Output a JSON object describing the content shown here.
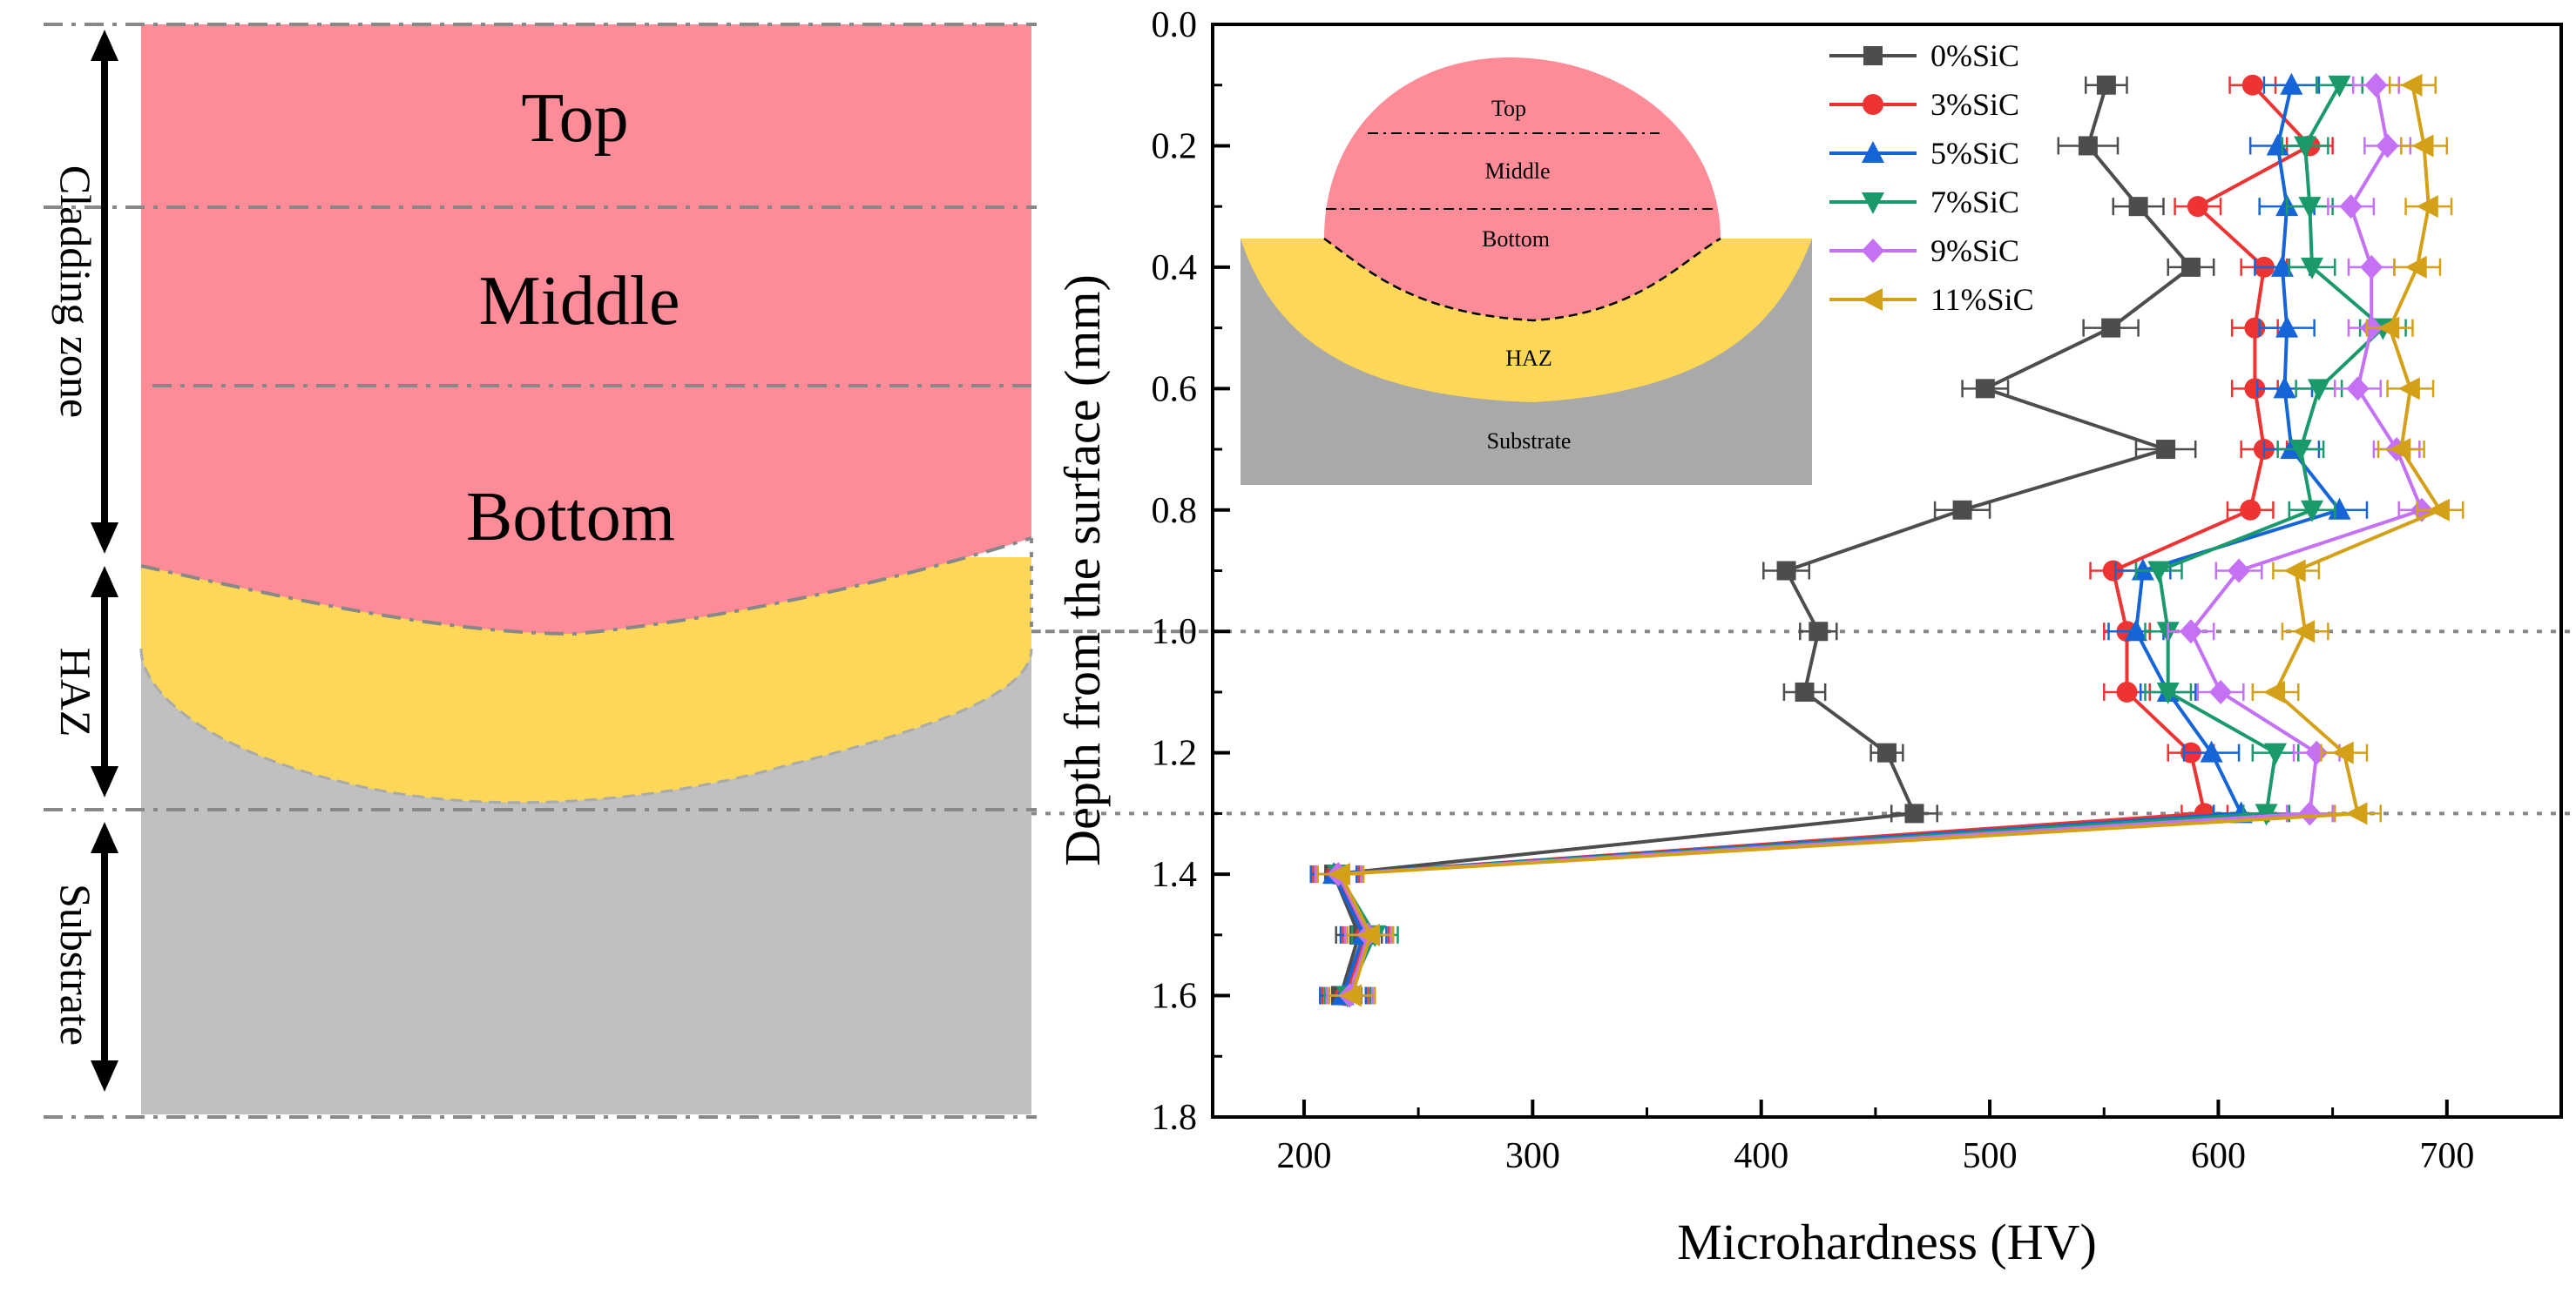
{
  "schematic": {
    "zones": {
      "top": "Top",
      "middle": "Middle",
      "bottom": "Bottom"
    },
    "side_labels": {
      "cladding": "Cladding zone",
      "haz": "HAZ",
      "substrate": "Substrate"
    },
    "colors": {
      "cladding": "#fd8c98",
      "haz": "#fdd858",
      "substrate": "#c0c0c0"
    }
  },
  "inset": {
    "labels": {
      "top": "Top",
      "middle": "Middle",
      "bottom": "Bottom",
      "haz": "HAZ",
      "substrate": "Substrate"
    }
  },
  "chart_data": {
    "type": "line",
    "title": "",
    "xlabel": "Microhardness (HV)",
    "ylabel": "Depth from the surface (mm)",
    "xlim": [
      160,
      750
    ],
    "ylim": [
      0.0,
      1.8
    ],
    "y_inverted": true,
    "xticks": [
      "200",
      "300",
      "400",
      "500",
      "600",
      "700"
    ],
    "yticks": [
      "0.0",
      "0.2",
      "0.4",
      "0.6",
      "0.8",
      "1.0",
      "1.2",
      "1.4",
      "1.6",
      "1.8"
    ],
    "reference_lines_depth": [
      1.0,
      1.3
    ],
    "legend_position": "top-right",
    "depth": [
      0.1,
      0.2,
      0.3,
      0.4,
      0.5,
      0.6,
      0.7,
      0.8,
      0.9,
      1.0,
      1.1,
      1.2,
      1.3,
      1.4,
      1.5,
      1.6
    ],
    "series": [
      {
        "name": "0%SiC",
        "color": "#4d4d4d",
        "marker": "square",
        "values": [
          551,
          543,
          565,
          588,
          553,
          498,
          577,
          488,
          411,
          425,
          419,
          455,
          467,
          213,
          224,
          216
        ],
        "errors": [
          9,
          13,
          11,
          10,
          12,
          10,
          13,
          12,
          10,
          8,
          9,
          7,
          10,
          10,
          10,
          9
        ]
      },
      {
        "name": "3%SiC",
        "color": "#ee3333",
        "marker": "circle",
        "values": [
          615,
          640,
          591,
          620,
          616,
          616,
          620,
          614,
          554,
          560,
          560,
          588,
          594,
          214,
          227,
          218
        ],
        "errors": [
          10,
          10,
          10,
          10,
          10,
          10,
          10,
          10,
          10,
          10,
          10,
          10,
          10,
          10,
          10,
          10
        ]
      },
      {
        "name": "5%SiC",
        "color": "#1565d8",
        "marker": "triangle-up",
        "values": [
          632,
          626,
          630,
          628,
          630,
          629,
          632,
          653,
          567,
          564,
          578,
          597,
          610,
          213,
          226,
          217
        ],
        "errors": [
          12,
          12,
          12,
          12,
          12,
          12,
          12,
          12,
          12,
          12,
          12,
          12,
          12,
          10,
          10,
          10
        ]
      },
      {
        "name": "7%SiC",
        "color": "#1a9a6b",
        "marker": "triangle-down",
        "values": [
          653,
          638,
          640,
          641,
          672,
          644,
          636,
          641,
          574,
          578,
          578,
          625,
          621,
          215,
          231,
          219
        ],
        "errors": [
          10,
          10,
          10,
          10,
          10,
          10,
          10,
          10,
          10,
          10,
          10,
          10,
          10,
          10,
          10,
          10
        ]
      },
      {
        "name": "9%SiC",
        "color": "#c471f5",
        "marker": "diamond",
        "values": [
          669,
          674,
          658,
          667,
          667,
          661,
          678,
          689,
          609,
          588,
          601,
          643,
          640,
          215,
          228,
          220
        ],
        "errors": [
          10,
          10,
          10,
          10,
          10,
          10,
          10,
          10,
          10,
          10,
          10,
          10,
          10,
          10,
          10,
          10
        ]
      },
      {
        "name": "11%SiC",
        "color": "#d4a017",
        "marker": "triangle-left",
        "values": [
          685,
          690,
          692,
          687,
          675,
          684,
          680,
          697,
          634,
          638,
          625,
          655,
          661,
          216,
          229,
          221
        ],
        "errors": [
          10,
          10,
          10,
          10,
          10,
          10,
          10,
          10,
          10,
          10,
          10,
          10,
          10,
          10,
          10,
          10
        ]
      }
    ]
  }
}
